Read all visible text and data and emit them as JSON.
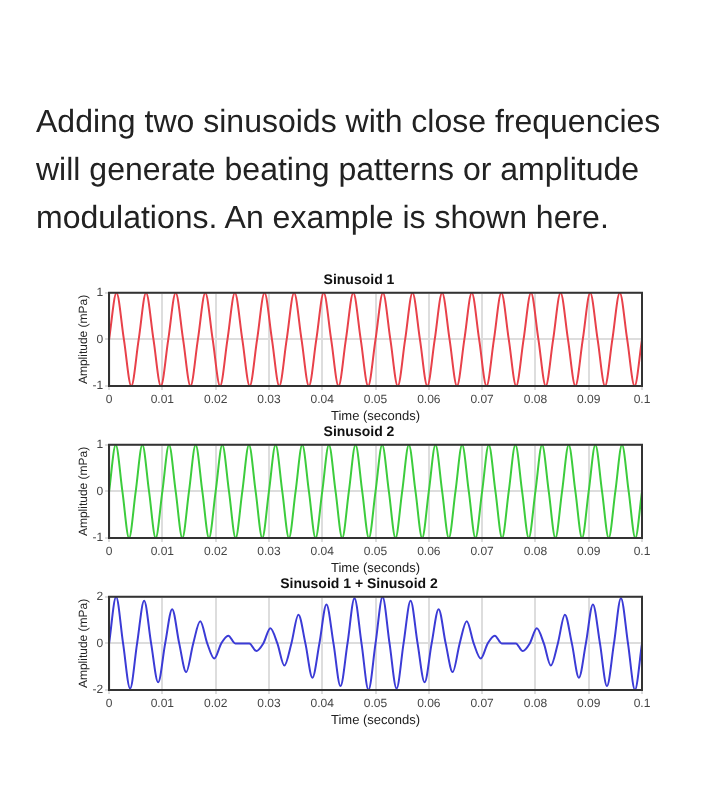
{
  "chart_data": [
    {
      "type": "line",
      "title": "Sinusoid 1",
      "xlabel": "Time (seconds)",
      "ylabel": "Amplitude (mPa)",
      "annotations": [
        "Adding two sinusoids with close frequencies will generate beating patterns or amplitude modulations. An example is shown here."
      ],
      "series": [
        {
          "color": "#e8414a",
          "x": [
            0,
            0.00139,
            0.00278,
            0.00417,
            0.00556,
            0.00694,
            0.00833,
            0.00972,
            0.01111,
            0.0125,
            0.01389,
            0.01528,
            0.01667,
            0.01806,
            0.01944,
            0.02083,
            0.02222,
            0.02361,
            0.025,
            0.02639,
            0.02778,
            0.02917,
            0.03056,
            0.03194,
            0.03333,
            0.03472,
            0.03611,
            0.0375,
            0.03889,
            0.04028,
            0.04167,
            0.04306,
            0.04444,
            0.04583,
            0.04722,
            0.04861,
            0.05,
            0.05139,
            0.05278,
            0.05417,
            0.05556,
            0.05694,
            0.05833,
            0.05972,
            0.06111,
            0.0625,
            0.06389,
            0.06528,
            0.06667,
            0.06806,
            0.06944,
            0.07083,
            0.07222,
            0.07361,
            0.075,
            0.07639,
            0.07778,
            0.07917,
            0.08056,
            0.08194,
            0.08333,
            0.08472,
            0.08611,
            0.0875,
            0.08889,
            0.09028,
            0.09167,
            0.09306,
            0.09444,
            0.09583,
            0.09722,
            0.09861,
            0.1
          ],
          "values": [
            0,
            1,
            0,
            -1,
            0,
            1,
            0,
            -1,
            0,
            1,
            0,
            -1,
            0,
            1,
            0,
            -1,
            0,
            1,
            0,
            -1,
            0,
            1,
            0,
            -1,
            0,
            1,
            0,
            -1,
            0,
            1,
            0,
            -1,
            0,
            1,
            0,
            -1,
            0,
            1,
            0,
            -1,
            0,
            1,
            0,
            -1,
            0,
            1,
            0,
            -1,
            0,
            1,
            0,
            -1,
            0,
            1,
            0,
            -1,
            0,
            1,
            0,
            -1,
            0,
            1,
            0,
            -1,
            0,
            1,
            0,
            -1,
            0,
            1,
            0,
            -1,
            0
          ]
        }
      ],
      "xlim": [
        0,
        0.1
      ],
      "xticks": [
        0,
        0.01,
        0.02,
        0.03,
        0.04,
        0.05,
        0.06,
        0.07,
        0.08,
        0.09,
        0.1
      ],
      "ylim": [
        -1,
        1
      ],
      "yticks": [
        -1,
        0,
        1
      ],
      "grid": true,
      "marker": "none",
      "line_style": "solid"
    },
    {
      "type": "line",
      "title": "Sinusoid 2",
      "xlabel": "Time (seconds)",
      "ylabel": "Amplitude (mPa)",
      "series": [
        {
          "color": "#3ccc3c",
          "x": [
            0,
            0.00125,
            0.0025,
            0.00375,
            0.005,
            0.00625,
            0.0075,
            0.00875,
            0.01,
            0.01125,
            0.0125,
            0.01375,
            0.015,
            0.01625,
            0.0175,
            0.01875,
            0.02,
            0.02125,
            0.0225,
            0.02375,
            0.025,
            0.02625,
            0.0275,
            0.02875,
            0.03,
            0.03125,
            0.0325,
            0.03375,
            0.035,
            0.03625,
            0.0375,
            0.03875,
            0.04,
            0.04125,
            0.0425,
            0.04375,
            0.045,
            0.04625,
            0.0475,
            0.04875,
            0.05,
            0.05125,
            0.0525,
            0.05375,
            0.055,
            0.05625,
            0.0575,
            0.05875,
            0.06,
            0.06125,
            0.0625,
            0.06375,
            0.065,
            0.06625,
            0.0675,
            0.06875,
            0.07,
            0.07125,
            0.0725,
            0.07375,
            0.075,
            0.07625,
            0.0775,
            0.07875,
            0.08,
            0.08125,
            0.0825,
            0.08375,
            0.085,
            0.08625,
            0.0875,
            0.08875,
            0.09,
            0.09125,
            0.0925,
            0.09375,
            0.095,
            0.09625,
            0.0975,
            0.09875,
            0.1
          ],
          "values": [
            0,
            1,
            0,
            -1,
            0,
            1,
            0,
            -1,
            0,
            1,
            0,
            -1,
            0,
            1,
            0,
            -1,
            0,
            1,
            0,
            -1,
            0,
            1,
            0,
            -1,
            0,
            1,
            0,
            -1,
            0,
            1,
            0,
            -1,
            0,
            1,
            0,
            -1,
            0,
            1,
            0,
            -1,
            0,
            1,
            0,
            -1,
            0,
            1,
            0,
            -1,
            0,
            1,
            0,
            -1,
            0,
            1,
            0,
            -1,
            0,
            1,
            0,
            -1,
            0,
            1,
            0,
            -1,
            0,
            1,
            0,
            -1,
            0,
            1,
            0,
            -1,
            0,
            1,
            0,
            -1,
            0,
            1,
            0,
            -1,
            0
          ]
        }
      ],
      "xlim": [
        0,
        0.1
      ],
      "xticks": [
        0,
        0.01,
        0.02,
        0.03,
        0.04,
        0.05,
        0.06,
        0.07,
        0.08,
        0.09,
        0.1
      ],
      "ylim": [
        -1,
        1
      ],
      "yticks": [
        -1,
        0,
        1
      ],
      "grid": true,
      "marker": "none",
      "line_style": "solid"
    },
    {
      "type": "line",
      "title": "Sinusoid 1 + Sinusoid 2",
      "xlabel": "Time (seconds)",
      "ylabel": "Amplitude (mPa)",
      "series": [
        {
          "color": "#3b3bd6",
          "x": [
            0,
            0.00132,
            0.00263,
            0.00395,
            0.00526,
            0.00658,
            0.00789,
            0.00921,
            0.01053,
            0.01184,
            0.01316,
            0.01447,
            0.01579,
            0.01711,
            0.01842,
            0.01974,
            0.02105,
            0.02237,
            0.02368,
            0.025,
            0.02632,
            0.02763,
            0.02895,
            0.03026,
            0.03158,
            0.03289,
            0.03421,
            0.03553,
            0.03684,
            0.03816,
            0.03947,
            0.04079,
            0.04211,
            0.04342,
            0.04474,
            0.04605,
            0.04737,
            0.04868,
            0.05,
            0.05132,
            0.05263,
            0.05395,
            0.05526,
            0.05658,
            0.05789,
            0.05921,
            0.06053,
            0.06184,
            0.06316,
            0.06447,
            0.06579,
            0.06711,
            0.06842,
            0.06974,
            0.07105,
            0.07237,
            0.07368,
            0.075,
            0.07632,
            0.07763,
            0.07895,
            0.08026,
            0.08158,
            0.08289,
            0.08421,
            0.08553,
            0.08684,
            0.08816,
            0.08947,
            0.09079,
            0.09211,
            0.09342,
            0.09474,
            0.09605,
            0.09737,
            0.09868,
            0.1
          ],
          "values": [
            0,
            2,
            0,
            -1.94,
            0,
            1.83,
            0,
            -1.67,
            0,
            1.47,
            0,
            -1.23,
            0,
            0.95,
            0,
            -0.65,
            0,
            0.33,
            0,
            0,
            0,
            -0.33,
            0,
            0.65,
            0,
            -0.95,
            0,
            1.23,
            0,
            -1.47,
            0,
            1.67,
            0,
            -1.83,
            0,
            1.94,
            0,
            -1.99,
            0,
            1.99,
            0,
            -1.94,
            0,
            1.83,
            0,
            -1.67,
            0,
            1.47,
            0,
            -1.23,
            0,
            0.95,
            0,
            -0.65,
            0,
            0.33,
            0,
            0,
            0,
            -0.33,
            0,
            0.65,
            0,
            -0.95,
            0,
            1.23,
            0,
            -1.47,
            0,
            1.67,
            0,
            -1.83,
            0,
            1.94,
            0,
            -1.99,
            0
          ]
        }
      ],
      "xlim": [
        0,
        0.1
      ],
      "xticks": [
        0,
        0.01,
        0.02,
        0.03,
        0.04,
        0.05,
        0.06,
        0.07,
        0.08,
        0.09,
        0.1
      ],
      "ylim": [
        -2,
        2
      ],
      "yticks": [
        -2,
        0,
        2
      ],
      "grid": true,
      "marker": "none",
      "line_style": "solid"
    }
  ]
}
